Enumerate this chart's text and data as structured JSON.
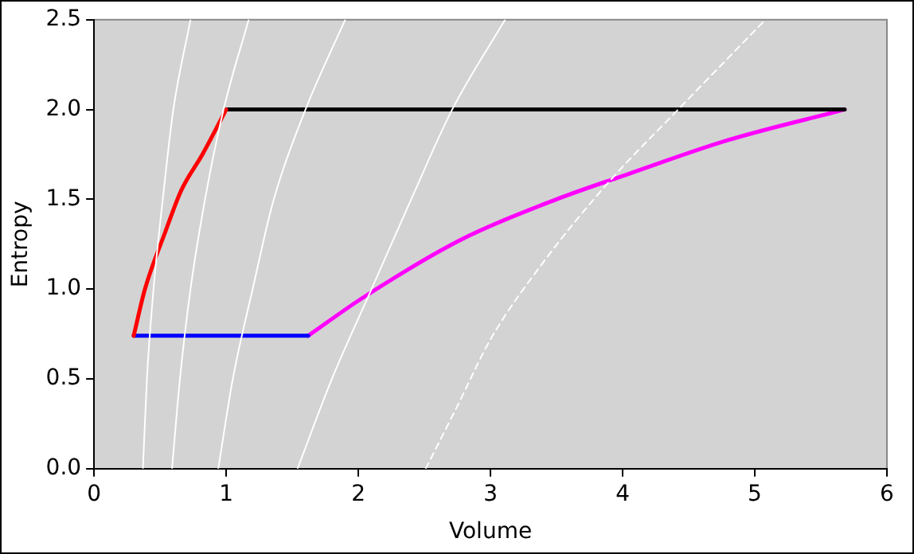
{
  "chart_data": {
    "type": "line",
    "xlabel": "Volume",
    "ylabel": "Entropy",
    "xlim": [
      0,
      6
    ],
    "xticks": [
      0,
      1,
      2,
      3,
      4,
      5,
      6
    ],
    "ylim": [
      0,
      2.5
    ],
    "yticks": [
      {
        "value": 0,
        "label": "0.0"
      },
      {
        "value": 0.5,
        "label": "0.5"
      },
      {
        "value": 1,
        "label": "1.0"
      },
      {
        "value": 1.5,
        "label": "1.5"
      },
      {
        "value": 2,
        "label": "2.0"
      },
      {
        "value": 2.5,
        "label": "2.5"
      }
    ],
    "grid": false,
    "legend": false,
    "marker": "none",
    "series": [
      {
        "color": "#ffffff",
        "x": [
          0.37,
          0.4,
          0.45,
          0.52,
          0.6,
          0.73
        ],
        "values": [
          0,
          0.5,
          1.0,
          1.5,
          2.0,
          2.5
        ]
      },
      {
        "color": "#ffffff",
        "x": [
          0.59,
          0.65,
          0.73,
          0.84,
          0.98,
          1.17
        ],
        "values": [
          0,
          0.5,
          1.0,
          1.5,
          2.0,
          2.5
        ]
      },
      {
        "color": "#ffffff",
        "x": [
          0.94,
          1.05,
          1.2,
          1.36,
          1.6,
          1.9
        ],
        "values": [
          0,
          0.5,
          1.0,
          1.5,
          2.0,
          2.5
        ]
      },
      {
        "color": "#ffffff",
        "x": [
          1.54,
          1.8,
          2.1,
          2.4,
          2.71,
          3.11
        ],
        "values": [
          0,
          0.5,
          1.0,
          1.5,
          2.0,
          2.5
        ]
      },
      {
        "color": "#ffffff",
        "line_style": "dashed",
        "x": [
          2.51,
          2.75,
          3.0,
          3.4,
          3.9,
          4.42,
          5.08
        ],
        "values": [
          0,
          0.35,
          0.72,
          1.15,
          1.6,
          2.0,
          2.5
        ]
      },
      {
        "color": "#ff0000",
        "x": [
          0.3,
          0.385,
          0.54,
          0.66,
          0.82,
          1.0
        ],
        "values": [
          0.74,
          1.0,
          1.32,
          1.55,
          1.75,
          2.0
        ]
      },
      {
        "color": "#000000",
        "x": [
          1.0,
          5.68
        ],
        "values": [
          2.0,
          2.0
        ]
      },
      {
        "color": "#0000ff",
        "x": [
          0.3,
          1.62
        ],
        "values": [
          0.74,
          0.74
        ]
      },
      {
        "color": "#ff00ff",
        "x": [
          1.62,
          2.03,
          2.79,
          3.5,
          4.04,
          4.8,
          5.68
        ],
        "values": [
          0.74,
          0.95,
          1.28,
          1.5,
          1.64,
          1.83,
          2.0
        ]
      }
    ]
  }
}
